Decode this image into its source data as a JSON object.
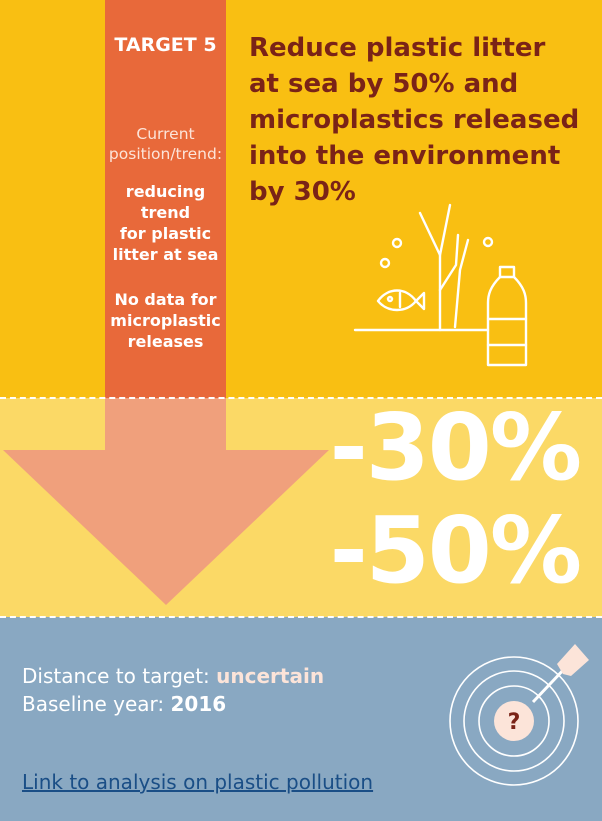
{
  "target": {
    "label": "TARGET 5",
    "current_label_line1": "Current",
    "current_label_line2": "position/trend:",
    "trend_lines": [
      "reducing",
      "trend",
      "for plastic",
      "litter at sea"
    ],
    "nodata_lines": [
      "No data for",
      "microplastic",
      "releases"
    ]
  },
  "headline": {
    "lines": [
      "Reduce plastic litter",
      "at sea by 50%  and",
      "microplastics released",
      "into the environment",
      "by 30%"
    ]
  },
  "percentages": {
    "first": "-30%",
    "second": "-50%"
  },
  "info": {
    "distance_label": "Distance to target: ",
    "distance_value": "uncertain",
    "baseline_label": "Baseline year: ",
    "baseline_value": "2016",
    "link_text": "Link to analysis on plastic pollution"
  },
  "target_icon": {
    "symbol": "?"
  },
  "colors": {
    "top_band": "#F9BF12",
    "middle_band": "#FBD966",
    "bottom_band": "#89A8C2",
    "arrow_column": "#E8693A",
    "arrow_head": "#F0A07C",
    "headline": "#7A2317",
    "link": "#1A4E86"
  },
  "icons": [
    "seaweed-icon",
    "fish-icon",
    "bubble-icon",
    "plastic-bottle-icon",
    "dartboard-icon",
    "dart-arrow-icon"
  ]
}
